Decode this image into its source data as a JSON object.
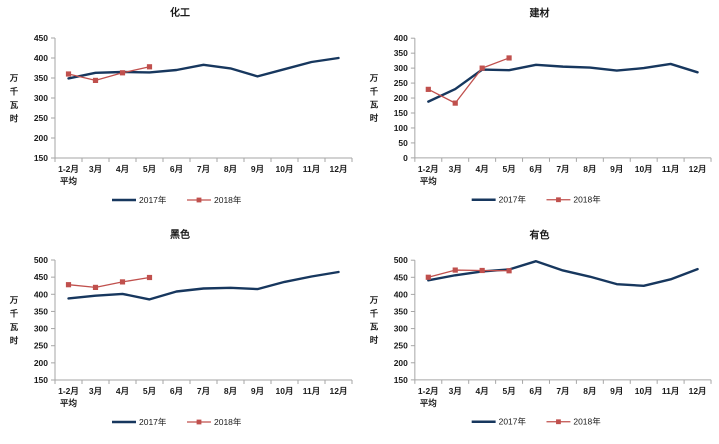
{
  "page": {
    "background": "#ffffff"
  },
  "colors": {
    "series_2017": "#17375E",
    "series_2018": "#C0504D",
    "axis_line": "#A6A6A6",
    "label_text": "#1a1a1a"
  },
  "legend": {
    "labels": [
      "2017年",
      "2018年"
    ],
    "position": "bottom"
  },
  "chart_data": [
    {
      "type": "line",
      "title": "化工",
      "ylabel": "万千瓦时",
      "xlabel": "",
      "ylim": [
        150,
        450
      ],
      "ytick_step": 50,
      "grid": false,
      "legend_position": "bottom",
      "categories": [
        "1-2月\n平均",
        "3月",
        "4月",
        "5月",
        "6月",
        "7月",
        "8月",
        "9月",
        "10月",
        "11月",
        "12月"
      ],
      "series": [
        {
          "name": "2017年",
          "color": "#17375E",
          "marker": "none",
          "values": [
            349,
            363,
            365,
            364,
            370,
            383,
            374,
            354,
            372,
            390,
            400
          ]
        },
        {
          "name": "2018年",
          "color": "#C0504D",
          "marker": "square",
          "values": [
            360,
            344,
            363,
            378
          ]
        }
      ]
    },
    {
      "type": "line",
      "title": "建材",
      "ylabel": "万千瓦时",
      "xlabel": "",
      "ylim": [
        0,
        400
      ],
      "ytick_step": 50,
      "grid": false,
      "legend_position": "bottom",
      "categories": [
        "1-2月\n平均",
        "3月",
        "4月",
        "5月",
        "6月",
        "7月",
        "8月",
        "9月",
        "10月",
        "11月",
        "12月"
      ],
      "series": [
        {
          "name": "2017年",
          "color": "#17375E",
          "marker": "none",
          "values": [
            188,
            230,
            295,
            293,
            311,
            305,
            302,
            292,
            300,
            314,
            286
          ]
        },
        {
          "name": "2018年",
          "color": "#C0504D",
          "marker": "square",
          "values": [
            229,
            183,
            300,
            334
          ]
        }
      ]
    },
    {
      "type": "line",
      "title": "黑色",
      "ylabel": "万千瓦时",
      "xlabel": "",
      "ylim": [
        150,
        500
      ],
      "ytick_step": 50,
      "grid": false,
      "legend_position": "bottom",
      "categories": [
        "1-2月\n平均",
        "3月",
        "4月",
        "5月",
        "6月",
        "7月",
        "8月",
        "9月",
        "10月",
        "11月",
        "12月"
      ],
      "series": [
        {
          "name": "2017年",
          "color": "#17375E",
          "marker": "none",
          "values": [
            388,
            396,
            401,
            385,
            408,
            417,
            419,
            415,
            436,
            452,
            465
          ]
        },
        {
          "name": "2018年",
          "color": "#C0504D",
          "marker": "square",
          "values": [
            428,
            420,
            436,
            449
          ]
        }
      ]
    },
    {
      "type": "line",
      "title": "有色",
      "ylabel": "万千瓦时",
      "xlabel": "",
      "ylim": [
        150,
        500
      ],
      "ytick_step": 50,
      "grid": false,
      "legend_position": "bottom",
      "categories": [
        "1-2月\n平均",
        "3月",
        "4月",
        "5月",
        "6月",
        "7月",
        "8月",
        "9月",
        "10月",
        "11月",
        "12月"
      ],
      "series": [
        {
          "name": "2017年",
          "color": "#17375E",
          "marker": "none",
          "values": [
            441,
            456,
            467,
            473,
            497,
            470,
            452,
            430,
            425,
            444,
            474
          ]
        },
        {
          "name": "2018年",
          "color": "#C0504D",
          "marker": "square",
          "values": [
            450,
            471,
            470,
            469
          ]
        }
      ]
    }
  ]
}
